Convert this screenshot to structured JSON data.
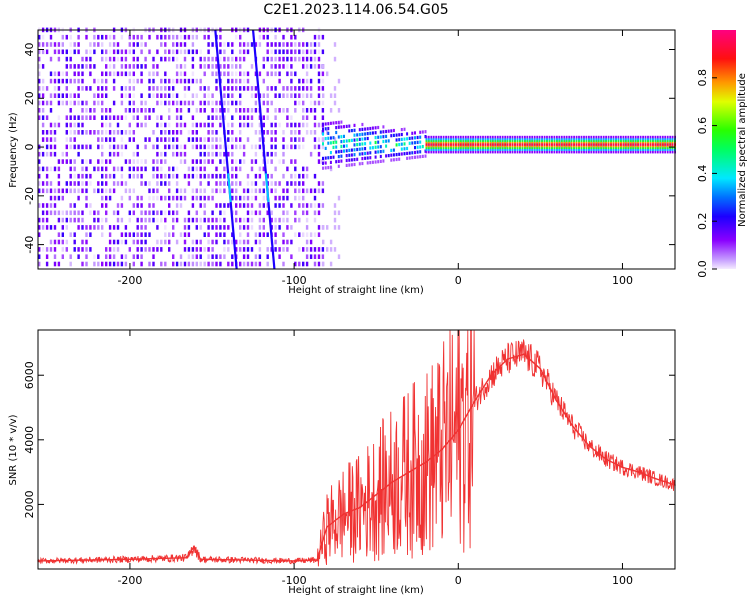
{
  "title": "C2E1.2023.114.06.54.G05",
  "chart_data": [
    {
      "type": "heatmap",
      "xlabel": "Height of straight line (km)",
      "ylabel": "Frequency (Hz)",
      "xlim": [
        -256,
        132
      ],
      "ylim": [
        -50,
        48
      ],
      "x_ticks": [
        -200,
        -100,
        0,
        100
      ],
      "y_ticks": [
        -40,
        -20,
        0,
        20,
        40
      ],
      "colorbar": {
        "label": "Normalized spectral amplitude",
        "range": [
          0.0,
          1.0
        ],
        "ticks": [
          0.0,
          0.2,
          0.4,
          0.6,
          0.8
        ],
        "tick_labels": [
          "0.0",
          "0.2",
          "0.4",
          "0.6",
          "0.8"
        ],
        "colormap": "gist_rainbow (violet-blue-cyan-green-yellow-red-magenta)"
      },
      "regions": [
        {
          "x_range": [
            -256,
            -83
          ],
          "frequency_range": [
            -50,
            48
          ],
          "amplitude": [
            0.0,
            0.2
          ],
          "description": "broadband noise"
        },
        {
          "x_range": [
            -83,
            -20
          ],
          "frequency_center": 0,
          "amplitude": [
            0.2,
            0.6
          ]
        },
        {
          "x_range": [
            -20,
            132
          ],
          "frequency_center": 1,
          "amplitude": [
            0.8,
            1.0
          ]
        }
      ],
      "streaks": [
        {
          "x_at_top": -148,
          "x_at_bottom": -135
        },
        {
          "x_at_top": -125,
          "x_at_bottom": -112
        }
      ]
    },
    {
      "type": "line",
      "xlabel": "Height of straight line (km)",
      "ylabel": "SNR (10 * v/v)",
      "xlim": [
        -256,
        132
      ],
      "ylim": [
        0,
        7400
      ],
      "x_ticks": [
        -200,
        -100,
        0,
        100
      ],
      "y_ticks": [
        2000,
        4000,
        6000
      ],
      "color": "#f03232",
      "series": [
        {
          "x": [
            -256,
            -200,
            -165,
            -161,
            -157,
            -100,
            -86,
            -80,
            -70,
            -60,
            -50,
            -40,
            -30,
            -20,
            -10,
            0,
            10,
            20,
            30,
            40,
            50,
            60,
            70,
            80,
            90,
            100,
            110,
            120,
            132
          ],
          "y": [
            250,
            300,
            350,
            700,
            300,
            250,
            280,
            1300,
            1700,
            1900,
            2300,
            2700,
            3000,
            3300,
            3700,
            4300,
            5200,
            6000,
            6500,
            6650,
            6200,
            5200,
            4400,
            3800,
            3400,
            3150,
            3000,
            2800,
            2600
          ]
        }
      ]
    }
  ]
}
